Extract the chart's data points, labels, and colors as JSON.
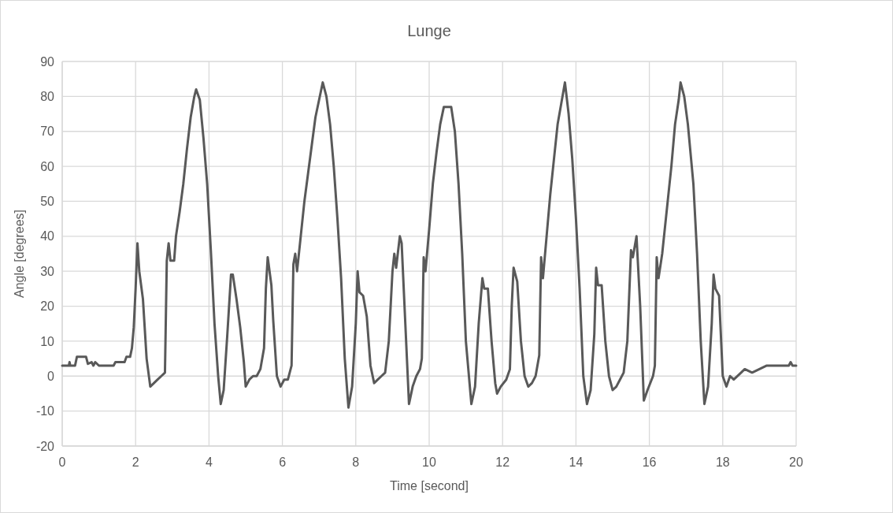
{
  "chart_data": {
    "type": "line",
    "title": "Lunge",
    "xlabel": "Time [second]",
    "ylabel": "Angle [degrees]",
    "xlim": [
      0,
      20
    ],
    "xticks": [
      0,
      2,
      4,
      6,
      8,
      10,
      12,
      14,
      16,
      18,
      20
    ],
    "ylim": [
      -20,
      90
    ],
    "yticks": [
      -20,
      -10,
      0,
      10,
      20,
      30,
      40,
      50,
      60,
      70,
      80,
      90
    ],
    "grid": true,
    "marker": "none",
    "line_style": "solid",
    "series": [
      {
        "color": "#595959",
        "x": [
          0,
          0.18,
          0.2,
          0.22,
          0.35,
          0.4,
          0.65,
          0.7,
          0.8,
          0.85,
          0.9,
          1.0,
          1.05,
          1.4,
          1.45,
          1.7,
          1.75,
          1.85,
          1.9,
          1.95,
          2.0,
          2.05,
          2.1,
          2.2,
          2.3,
          2.4,
          2.5,
          2.6,
          2.7,
          2.8,
          2.85,
          2.9,
          2.95,
          3.05,
          3.1,
          3.2,
          3.3,
          3.4,
          3.5,
          3.6,
          3.65,
          3.75,
          3.85,
          3.95,
          4.05,
          4.15,
          4.25,
          4.32,
          4.4,
          4.5,
          4.6,
          4.65,
          4.75,
          4.85,
          4.95,
          5.0,
          5.1,
          5.2,
          5.3,
          5.4,
          5.5,
          5.55,
          5.6,
          5.65,
          5.7,
          5.75,
          5.85,
          5.95,
          6.05,
          6.15,
          6.25,
          6.3,
          6.35,
          6.4,
          6.5,
          6.6,
          6.7,
          6.8,
          6.9,
          7.0,
          7.1,
          7.2,
          7.3,
          7.4,
          7.5,
          7.6,
          7.7,
          7.8,
          7.9,
          8.0,
          8.05,
          8.1,
          8.2,
          8.3,
          8.4,
          8.5,
          8.6,
          8.7,
          8.8,
          8.9,
          9.0,
          9.05,
          9.1,
          9.2,
          9.25,
          9.35,
          9.45,
          9.55,
          9.65,
          9.75,
          9.8,
          9.85,
          9.9,
          10.0,
          10.1,
          10.2,
          10.3,
          10.4,
          10.6,
          10.7,
          10.8,
          10.9,
          11.0,
          11.15,
          11.25,
          11.35,
          11.45,
          11.5,
          11.6,
          11.7,
          11.8,
          11.85,
          11.95,
          12.1,
          12.2,
          12.25,
          12.3,
          12.4,
          12.5,
          12.6,
          12.7,
          12.8,
          12.9,
          13.0,
          13.05,
          13.1,
          13.2,
          13.3,
          13.4,
          13.5,
          13.6,
          13.7,
          13.8,
          13.9,
          14.0,
          14.1,
          14.2,
          14.3,
          14.4,
          14.5,
          14.55,
          14.6,
          14.7,
          14.8,
          14.9,
          15.0,
          15.1,
          15.2,
          15.3,
          15.4,
          15.5,
          15.55,
          15.65,
          15.75,
          15.85,
          15.95,
          16.1,
          16.15,
          16.2,
          16.25,
          16.35,
          16.5,
          16.6,
          16.7,
          16.8,
          16.85,
          16.95,
          17.05,
          17.2,
          17.3,
          17.4,
          17.5,
          17.6,
          17.7,
          17.75,
          17.8,
          17.9,
          18.0,
          18.1,
          18.2,
          18.3,
          18.5,
          18.6,
          18.8,
          19.0,
          19.2,
          19.8,
          19.85,
          19.9,
          20
        ],
        "values": [
          3,
          3,
          4,
          3,
          3,
          5.5,
          5.5,
          3.5,
          4,
          3,
          4,
          3,
          3,
          3,
          4,
          4,
          5.5,
          5.5,
          8,
          14,
          25,
          38,
          30,
          22,
          5,
          -3,
          -2,
          -1,
          0,
          1,
          33,
          38,
          33,
          33,
          40,
          47,
          55,
          65,
          74,
          80,
          82,
          79,
          68,
          55,
          36,
          15,
          0,
          -8,
          -4,
          12,
          29,
          29,
          22,
          14,
          4,
          -3,
          -1,
          0,
          0,
          2,
          8,
          25,
          34,
          30,
          26,
          16,
          0,
          -3,
          -1,
          -1,
          3,
          32,
          35,
          30,
          40,
          50,
          58,
          66,
          74,
          79,
          84,
          80,
          72,
          60,
          45,
          28,
          5,
          -9,
          -3,
          15,
          30,
          24,
          23,
          17,
          3,
          -2,
          -1,
          0,
          1,
          10,
          30,
          35,
          31,
          40,
          38,
          15,
          -8,
          -3,
          0,
          2,
          5,
          34,
          30,
          42,
          55,
          64,
          72,
          77,
          77,
          70,
          55,
          35,
          10,
          -8,
          -3,
          15,
          28,
          25,
          25,
          10,
          -2,
          -5,
          -3,
          -1,
          2,
          20,
          31,
          27,
          10,
          0,
          -3,
          -2,
          0,
          6,
          34,
          28,
          40,
          52,
          62,
          72,
          78,
          84,
          75,
          62,
          45,
          25,
          0,
          -8,
          -4,
          12,
          31,
          26,
          26,
          10,
          0,
          -4,
          -3,
          -1,
          1,
          10,
          36,
          34,
          40,
          20,
          -7,
          -4,
          0,
          3,
          34,
          28,
          35,
          50,
          60,
          72,
          79,
          84,
          80,
          72,
          55,
          35,
          10,
          -8,
          -3,
          15,
          29,
          25,
          23,
          0,
          -3,
          0,
          -1,
          1,
          2,
          1,
          2,
          3,
          3,
          4,
          3,
          3
        ]
      }
    ]
  }
}
